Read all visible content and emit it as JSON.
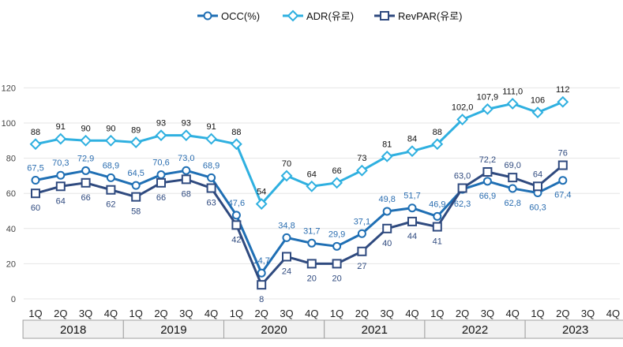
{
  "chart_data": {
    "type": "line",
    "title": "",
    "xlabel": "",
    "ylabel": "",
    "ylim": [
      0,
      120
    ],
    "yticks": [
      0,
      20,
      40,
      60,
      80,
      100,
      120
    ],
    "grid": true,
    "legend_position": "top-center",
    "categories": [
      "1Q",
      "2Q",
      "3Q",
      "4Q",
      "1Q",
      "2Q",
      "3Q",
      "4Q",
      "1Q",
      "2Q",
      "3Q",
      "4Q",
      "1Q",
      "2Q",
      "3Q",
      "4Q",
      "1Q",
      "2Q",
      "3Q",
      "4Q",
      "1Q",
      "2Q",
      "3Q",
      "4Q"
    ],
    "years": [
      "2018",
      "2019",
      "2020",
      "2021",
      "2022",
      "2023"
    ],
    "series": [
      {
        "name": "OCC(%)",
        "color": "#1f6fb4",
        "marker": "circle",
        "values": [
          67.5,
          70.3,
          72.9,
          68.9,
          64.5,
          70.6,
          73.0,
          68.9,
          47.6,
          14.7,
          34.8,
          31.7,
          29.9,
          37.1,
          49.8,
          51.7,
          46.9,
          62.3,
          66.9,
          62.8,
          60.3,
          67.4,
          null,
          null
        ],
        "labels": [
          "67,5",
          "70,3",
          "72,9",
          "68,9",
          "64,5",
          "70,6",
          "73,0",
          "68,9",
          "47,6",
          "14,7",
          "34,8",
          "31,7",
          "29,9",
          "37,1",
          "49,8",
          "51,7",
          "46,9",
          "62,3",
          "66,9",
          "62,8",
          "60,3",
          "67,4",
          null,
          null
        ]
      },
      {
        "name": "ADR(유로)",
        "color": "#2fb0e0",
        "marker": "diamond",
        "values": [
          88,
          91,
          90,
          90,
          89,
          93,
          93,
          91,
          88,
          54,
          70,
          64,
          66,
          73,
          81,
          84,
          88,
          102.0,
          107.9,
          111.0,
          106,
          112,
          null,
          null
        ],
        "labels": [
          "88",
          "91",
          "90",
          "90",
          "89",
          "93",
          "93",
          "91",
          "88",
          "54",
          "70",
          "64",
          "66",
          "73",
          "81",
          "84",
          "88",
          "102,0",
          "107,9",
          "111,0",
          "106",
          "112",
          null,
          null
        ]
      },
      {
        "name": "RevPAR(유로)",
        "color": "#2f4a7f",
        "marker": "square",
        "values": [
          60,
          64,
          66,
          62,
          58,
          66,
          68,
          63,
          42,
          8,
          24,
          20,
          20,
          27,
          40,
          44,
          41,
          63.0,
          72.2,
          69.0,
          64,
          76,
          null,
          null
        ],
        "labels": [
          "60",
          "64",
          "66",
          "62",
          "58",
          "66",
          "68",
          "63",
          "42",
          "8",
          "24",
          "20",
          "20",
          "27",
          "40",
          "44",
          "41",
          "63,0",
          "72,2",
          "69,0",
          "64",
          "76",
          null,
          null
        ]
      }
    ]
  }
}
